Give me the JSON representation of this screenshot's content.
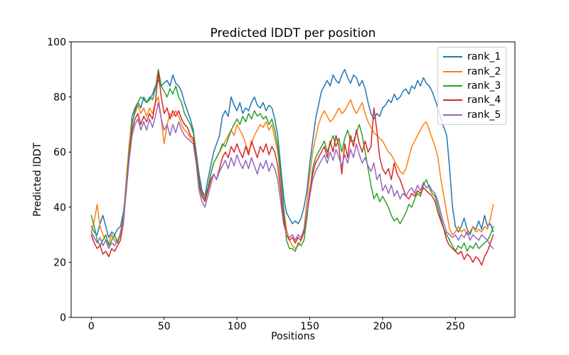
{
  "figure": {
    "title": "Predicted lDDT per position",
    "xlabel": "Positions",
    "ylabel": "Predicted lDDT",
    "background_color": "#ffffff",
    "spine_color": "#000000"
  },
  "legend": {
    "position": "upper right",
    "entries": [
      "rank_1",
      "rank_2",
      "rank_3",
      "rank_4",
      "rank_5"
    ]
  },
  "chart_data": {
    "type": "line",
    "title": "Predicted lDDT per position",
    "xlabel": "Positions",
    "ylabel": "Predicted lDDT",
    "xlim": [
      -13.85,
      290.85
    ],
    "ylim": [
      0,
      100
    ],
    "xticks": [
      0,
      50,
      100,
      150,
      200,
      250
    ],
    "yticks": [
      0,
      20,
      40,
      60,
      80,
      100
    ],
    "grid": false,
    "legend_position": "upper right",
    "x_start": 0,
    "x_step": 2,
    "series": [
      {
        "name": "rank_1",
        "color": "#1f77b4",
        "values": [
          33,
          31,
          30,
          34,
          37,
          33,
          29,
          31,
          30,
          32,
          33,
          38,
          46,
          62,
          73,
          76,
          78,
          76,
          80,
          78,
          79,
          81,
          84,
          86,
          84,
          85,
          86,
          84,
          88,
          85,
          84,
          82,
          78,
          75,
          72,
          68,
          60,
          52,
          46,
          44,
          50,
          55,
          60,
          63,
          66,
          73,
          75,
          73,
          80,
          77,
          75,
          78,
          74,
          76,
          75,
          78,
          80,
          77,
          76,
          78,
          75,
          77,
          76,
          72,
          66,
          55,
          44,
          38,
          36,
          34,
          35,
          34,
          36,
          40,
          46,
          56,
          64,
          72,
          77,
          82,
          84,
          86,
          84,
          88,
          86,
          85,
          88,
          90,
          87,
          85,
          88,
          87,
          84,
          86,
          83,
          78,
          74,
          72,
          74,
          73,
          76,
          77,
          79,
          78,
          81,
          79,
          80,
          82,
          83,
          81,
          84,
          83,
          86,
          84,
          87,
          85,
          84,
          82,
          79,
          76,
          72,
          69,
          66,
          54,
          40,
          33,
          31,
          33,
          36,
          32,
          30,
          33,
          32,
          35,
          32,
          37,
          33,
          34,
          31
        ]
      },
      {
        "name": "rank_2",
        "color": "#ff7f0e",
        "values": [
          31,
          35,
          41,
          33,
          30,
          28,
          27,
          30,
          28,
          27,
          31,
          36,
          50,
          63,
          71,
          74,
          77,
          74,
          76,
          73,
          76,
          74,
          78,
          80,
          72,
          63,
          70,
          74,
          73,
          75,
          73,
          70,
          68,
          67,
          65,
          64,
          58,
          50,
          45,
          44,
          46,
          52,
          56,
          58,
          60,
          62,
          64,
          66,
          68,
          66,
          70,
          68,
          66,
          63,
          60,
          63,
          66,
          68,
          70,
          69,
          71,
          68,
          70,
          65,
          60,
          50,
          40,
          32,
          28,
          26,
          25,
          26,
          28,
          32,
          42,
          52,
          60,
          65,
          70,
          73,
          75,
          73,
          71,
          72,
          74,
          76,
          74,
          75,
          77,
          79,
          76,
          74,
          76,
          78,
          74,
          71,
          69,
          67,
          66,
          65,
          64,
          62,
          60,
          59,
          57,
          55,
          53,
          52,
          54,
          58,
          62,
          64,
          66,
          68,
          70,
          71,
          68,
          65,
          62,
          58,
          50,
          44,
          38,
          32,
          30,
          31,
          33,
          31,
          32,
          30,
          31,
          33,
          31,
          32,
          31,
          33,
          32,
          36,
          41
        ]
      },
      {
        "name": "rank_3",
        "color": "#2ca02c",
        "values": [
          37,
          33,
          28,
          26,
          28,
          30,
          26,
          28,
          30,
          27,
          30,
          36,
          48,
          60,
          70,
          75,
          78,
          80,
          79,
          78,
          80,
          79,
          83,
          90,
          84,
          82,
          80,
          83,
          81,
          84,
          80,
          78,
          74,
          72,
          70,
          67,
          60,
          50,
          45,
          43,
          47,
          52,
          56,
          58,
          60,
          63,
          62,
          65,
          68,
          70,
          72,
          70,
          73,
          71,
          74,
          72,
          75,
          73,
          74,
          72,
          73,
          70,
          72,
          68,
          62,
          52,
          40,
          28,
          25,
          25,
          24,
          27,
          26,
          28,
          36,
          45,
          54,
          58,
          60,
          62,
          64,
          60,
          63,
          66,
          62,
          65,
          60,
          65,
          68,
          64,
          64,
          67,
          70,
          66,
          60,
          54,
          48,
          43,
          45,
          42,
          44,
          42,
          40,
          37,
          35,
          36,
          34,
          36,
          38,
          41,
          40,
          43,
          45,
          44,
          48,
          50,
          47,
          45,
          44,
          40,
          36,
          32,
          30,
          28,
          26,
          24,
          26,
          25,
          27,
          24,
          26,
          25,
          27,
          25,
          26,
          27,
          28,
          30,
          33
        ]
      },
      {
        "name": "rank_4",
        "color": "#d62728",
        "values": [
          30,
          27,
          25,
          26,
          23,
          24,
          22,
          25,
          24,
          26,
          28,
          34,
          46,
          58,
          68,
          72,
          74,
          70,
          73,
          71,
          74,
          72,
          78,
          89,
          80,
          74,
          76,
          72,
          75,
          73,
          75,
          72,
          70,
          69,
          66,
          65,
          58,
          48,
          44,
          42,
          46,
          50,
          52,
          50,
          54,
          58,
          60,
          58,
          62,
          60,
          63,
          60,
          58,
          62,
          59,
          64,
          61,
          58,
          62,
          60,
          63,
          59,
          62,
          60,
          55,
          46,
          36,
          30,
          28,
          29,
          27,
          29,
          28,
          31,
          38,
          46,
          52,
          56,
          58,
          60,
          62,
          58,
          64,
          60,
          66,
          62,
          52,
          63,
          58,
          66,
          62,
          68,
          63,
          60,
          64,
          60,
          62,
          76,
          68,
          58,
          54,
          52,
          54,
          50,
          56,
          52,
          50,
          47,
          44,
          43,
          45,
          44,
          46,
          45,
          47,
          46,
          45,
          44,
          42,
          38,
          35,
          32,
          28,
          26,
          25,
          24,
          23,
          24,
          21,
          23,
          22,
          20,
          22,
          21,
          19,
          22,
          24,
          27,
          30
        ]
      },
      {
        "name": "rank_5",
        "color": "#9467bd",
        "values": [
          31,
          29,
          27,
          29,
          26,
          28,
          25,
          27,
          26,
          28,
          30,
          35,
          46,
          57,
          66,
          70,
          72,
          68,
          71,
          68,
          72,
          69,
          73,
          78,
          72,
          68,
          70,
          66,
          70,
          67,
          71,
          68,
          66,
          65,
          64,
          63,
          56,
          46,
          42,
          40,
          44,
          48,
          52,
          50,
          53,
          55,
          57,
          54,
          58,
          55,
          59,
          56,
          54,
          57,
          54,
          58,
          55,
          52,
          56,
          54,
          57,
          53,
          56,
          54,
          50,
          42,
          34,
          30,
          29,
          30,
          28,
          30,
          29,
          32,
          38,
          44,
          50,
          53,
          55,
          57,
          59,
          56,
          60,
          57,
          61,
          58,
          55,
          59,
          56,
          61,
          58,
          63,
          59,
          56,
          58,
          55,
          53,
          56,
          50,
          52,
          46,
          48,
          45,
          48,
          44,
          46,
          43,
          45,
          44,
          46,
          47,
          45,
          48,
          46,
          49,
          47,
          48,
          46,
          45,
          42,
          38,
          34,
          31,
          30,
          29,
          30,
          28,
          30,
          29,
          31,
          28,
          30,
          29,
          28,
          30,
          29,
          28,
          26,
          25
        ]
      }
    ]
  }
}
